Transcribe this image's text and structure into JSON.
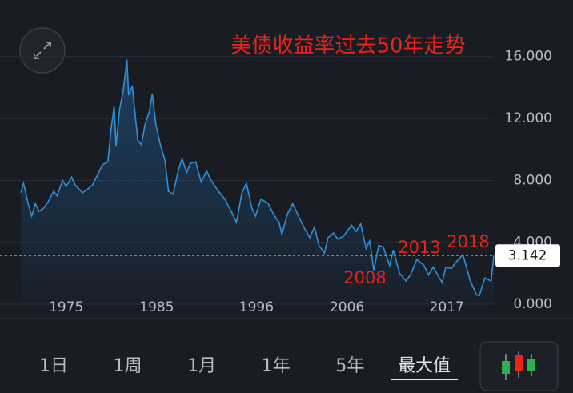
{
  "chart_data": {
    "type": "line",
    "title": "美债收益率过去50年走势",
    "x": [
      1970,
      1970.3,
      1970.8,
      1971.2,
      1971.6,
      1972,
      1972.5,
      1973,
      1973.6,
      1974,
      1974.6,
      1975,
      1975.6,
      1976,
      1976.8,
      1977.3,
      1977.9,
      1978.5,
      1979,
      1979.6,
      1980,
      1980.3,
      1980.5,
      1980.9,
      1981.3,
      1981.7,
      1981.9,
      1982.3,
      1982.6,
      1982.9,
      1983.3,
      1983.7,
      1984.2,
      1984.5,
      1984.9,
      1985.4,
      1985.9,
      1986.3,
      1986.8,
      1987.4,
      1987.8,
      1988.3,
      1988.7,
      1989.3,
      1989.9,
      1990.5,
      1991,
      1991.8,
      1992.5,
      1993.3,
      1993.8,
      1994.4,
      1994.9,
      1995.5,
      1995.9,
      1996.5,
      1997.3,
      1997.9,
      1998.5,
      1998.8,
      1999.4,
      2000,
      2000.8,
      2001.4,
      2001.9,
      2002.4,
      2002.9,
      2003.5,
      2003.9,
      2004.5,
      2005,
      2005.6,
      2006.5,
      2007,
      2007.5,
      2008.1,
      2008.5,
      2008.95,
      2009.5,
      2010,
      2010.7,
      2011.1,
      2011.8,
      2012.5,
      2013,
      2013.7,
      2014.5,
      2015,
      2015.5,
      2016.5,
      2016.9,
      2017.5,
      2018,
      2018.8,
      2019.6,
      2020.3,
      2020.6,
      2021.2,
      2021.9,
      2022.2
    ],
    "series": [
      {
        "color": "#2f8fd8",
        "values": [
          7.2,
          7.8,
          6.5,
          5.7,
          6.5,
          6.0,
          6.2,
          6.6,
          7.3,
          7.0,
          8.0,
          7.6,
          8.2,
          7.7,
          7.2,
          7.4,
          7.7,
          8.4,
          9.0,
          9.2,
          11.5,
          12.8,
          10.2,
          12.6,
          13.8,
          15.8,
          13.5,
          14.1,
          12.3,
          10.6,
          10.3,
          11.6,
          12.5,
          13.6,
          11.6,
          10.3,
          9.3,
          7.3,
          7.1,
          8.7,
          9.4,
          8.5,
          9.1,
          9.2,
          7.9,
          8.6,
          8.0,
          7.3,
          6.8,
          5.9,
          5.3,
          7.2,
          7.8,
          6.2,
          5.7,
          6.8,
          6.5,
          5.8,
          5.3,
          4.5,
          5.8,
          6.5,
          5.5,
          4.8,
          4.3,
          5.0,
          3.8,
          3.3,
          4.3,
          4.6,
          4.2,
          4.4,
          5.1,
          4.7,
          5.2,
          3.6,
          4.1,
          2.2,
          3.8,
          3.7,
          2.5,
          3.5,
          2.0,
          1.5,
          1.9,
          2.9,
          2.5,
          1.9,
          2.4,
          1.4,
          2.4,
          2.3,
          2.7,
          3.2,
          1.5,
          0.6,
          0.55,
          1.7,
          1.5,
          3.142
        ]
      }
    ],
    "xlim": [
      1969.9,
      2022.2
    ],
    "xticks": [
      1975,
      1985,
      1996,
      2006,
      2017
    ],
    "ylim": [
      -0.93,
      18.52
    ],
    "yticks": [
      {
        "value": 0,
        "label": "0.000"
      },
      {
        "value": 4,
        "label": "4.000"
      },
      {
        "value": 8,
        "label": "8.000"
      },
      {
        "value": 12,
        "label": "12.000"
      },
      {
        "value": 16,
        "label": "16.000"
      }
    ],
    "grid": true,
    "last_value": 3.142,
    "annotations": [
      "2008",
      "2013",
      "2018"
    ]
  },
  "controls": {
    "ranges": [
      "1日",
      "1周",
      "1月",
      "1年",
      "5年",
      "最大值"
    ],
    "selected": 5
  }
}
